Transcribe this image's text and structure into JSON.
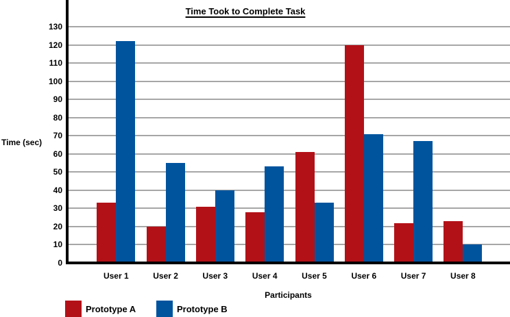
{
  "title": "Time Took to Complete Task",
  "colors": {
    "prototype_a": "#B31118",
    "prototype_b": "#00549E",
    "gridline": "#A6A6A6",
    "axis": "#000000",
    "background": "#FFFFFF",
    "text": "#000000"
  },
  "legend": [
    {
      "label": "Prototype A",
      "color": "#B31118"
    },
    {
      "label": "Prototype B",
      "color": "#00549E"
    }
  ],
  "chart_data": {
    "type": "bar",
    "title": "Time Took to Complete Task",
    "xlabel": "Participants",
    "ylabel": "Time (sec)",
    "categories": [
      "User 1",
      "User 2",
      "User 3",
      "User 4",
      "User 5",
      "User 6",
      "User 7",
      "User 8"
    ],
    "series": [
      {
        "name": "Prototype A",
        "color": "#B31118",
        "values": [
          33,
          20,
          31,
          28,
          61,
          120,
          22,
          23
        ]
      },
      {
        "name": "Prototype B",
        "color": "#00549E",
        "values": [
          122,
          55,
          40,
          53,
          33,
          71,
          67,
          10
        ]
      }
    ],
    "ylim": [
      0,
      130
    ],
    "ytick_step": 10,
    "yticks": [
      0,
      10,
      20,
      30,
      40,
      50,
      60,
      70,
      80,
      90,
      100,
      110,
      120,
      130
    ],
    "grid": "horizontal",
    "legend_position": "bottom-left"
  }
}
